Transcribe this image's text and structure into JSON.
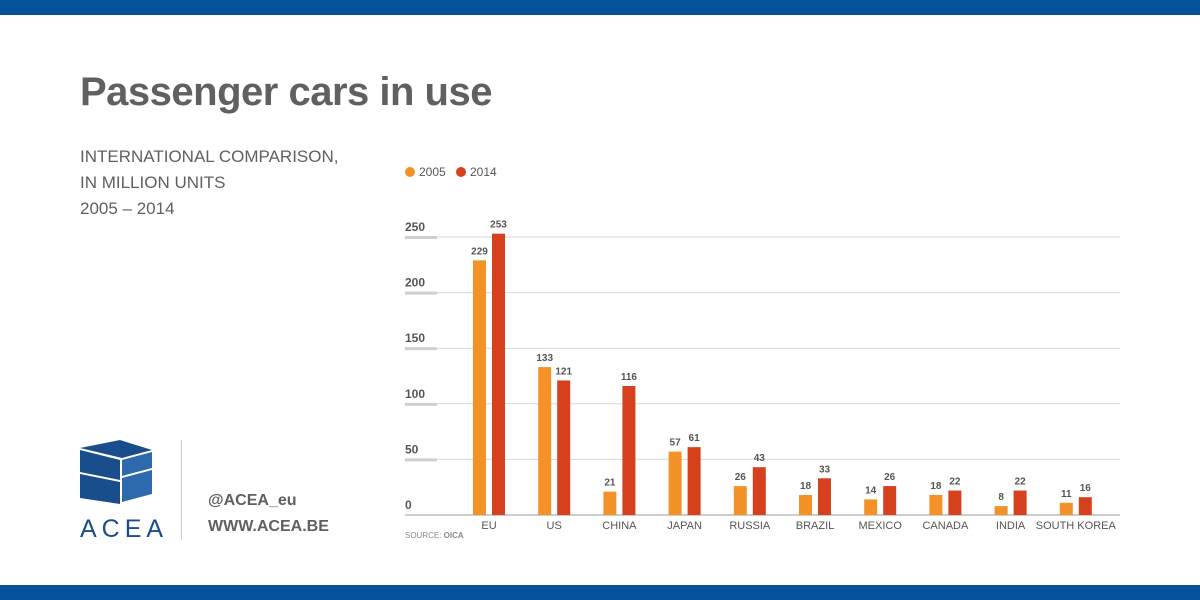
{
  "page": {
    "title": "Passenger cars in use",
    "subtitle_lines": [
      "INTERNATIONAL COMPARISON,",
      "IN MILLION UNITS",
      "2005 – 2014"
    ],
    "brand": "ACEA",
    "twitter": "@ACEA_eu",
    "website": "WWW.ACEA.BE",
    "source_label": "SOURCE:",
    "source": "OICA"
  },
  "colors": {
    "band": "#05519a",
    "brand": "#1a4d8c",
    "text": "#606060",
    "series_2005": "#f39228",
    "series_2014": "#d7401d",
    "grid": "#d9d9d9"
  },
  "chart_data": {
    "type": "bar",
    "title": "Passenger cars in use",
    "xlabel": "",
    "ylabel": "",
    "ylim": [
      0,
      250
    ],
    "yticks": [
      0,
      50,
      100,
      150,
      200,
      250
    ],
    "grid": true,
    "legend_position": "top-left",
    "categories": [
      "EU",
      "US",
      "CHINA",
      "JAPAN",
      "RUSSIA",
      "BRAZIL",
      "MEXICO",
      "CANADA",
      "INDIA",
      "SOUTH KOREA"
    ],
    "series": [
      {
        "name": "2005",
        "values": [
          229,
          133,
          21,
          57,
          26,
          18,
          14,
          18,
          8,
          11
        ]
      },
      {
        "name": "2014",
        "values": [
          253,
          121,
          116,
          61,
          43,
          33,
          26,
          22,
          22,
          16
        ]
      }
    ]
  }
}
